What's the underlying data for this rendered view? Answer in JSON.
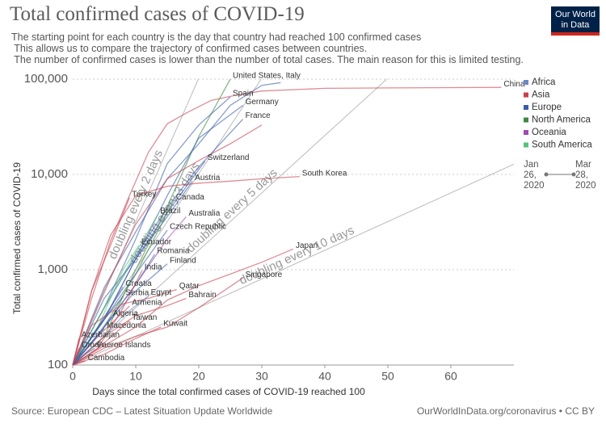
{
  "chart_data": {
    "type": "line",
    "log_y": true,
    "grid": true,
    "title": "Total confirmed cases of COVID-19",
    "subtitle": [
      "The starting point for each country is the day that country had reached 100 confirmed cases",
      " This allows us to compare the trajectory of confirmed cases between countries.",
      " The number of confirmed cases is lower than the number of total cases. The main reason for this is limited testing."
    ],
    "logo": "Our World in Data",
    "x_label": "Days since the total confirmed cases of COVID-19 reached 100",
    "y_label": "Total confirmed cases of COVID-19",
    "xlim": [
      0,
      70
    ],
    "xticks": [
      0,
      10,
      20,
      30,
      40,
      50,
      60
    ],
    "ylim": [
      100,
      100000
    ],
    "yticks": [
      100,
      {
        "value": 1000,
        "label": "1,000"
      },
      {
        "value": 10000,
        "label": "10,000"
      },
      {
        "value": 100000,
        "label": "100,000"
      }
    ],
    "legend": [
      {
        "name": "Africa",
        "color": "#6d88c4"
      },
      {
        "name": "Asia",
        "color": "#c6414f"
      },
      {
        "name": "Europe",
        "color": "#3b5da8"
      },
      {
        "name": "North America",
        "color": "#3a8a3a"
      },
      {
        "name": "Oceania",
        "color": "#a04bb0"
      },
      {
        "name": "South America",
        "color": "#56c27a"
      }
    ],
    "timeline": {
      "start": "Jan 26, 2020",
      "end": "Mar 28, 2020"
    },
    "doubling_lines": [
      {
        "label": "doubling every 2 days",
        "days": 2
      },
      {
        "label": "doubling every 3 days",
        "days": 3
      },
      {
        "label": "doubling every 5 days",
        "days": 5
      },
      {
        "label": "doubling every 10 days",
        "days": 10
      }
    ],
    "series": [
      {
        "name": "China",
        "color": "#c6414f",
        "x": [
          0,
          3,
          6,
          9,
          12,
          15,
          18,
          22,
          26,
          30,
          40,
          50,
          60,
          68
        ],
        "values": [
          100,
          500,
          2000,
          6000,
          17000,
          34000,
          44000,
          60000,
          68000,
          75000,
          80000,
          80800,
          81500,
          82000
        ]
      },
      {
        "name": "United States, Italy",
        "color": "#3a8a3a",
        "x": [
          0,
          5,
          10,
          15,
          20,
          25
        ],
        "values": [
          100,
          200,
          1000,
          4600,
          25000,
          100000
        ]
      },
      {
        "color": "#3b5da8",
        "x": [
          0,
          5,
          10,
          15,
          20,
          25,
          30,
          33
        ],
        "values": [
          100,
          650,
          2500,
          9000,
          21000,
          53000,
          86000,
          92000
        ]
      },
      {
        "name": "Spain",
        "color": "#3b5da8",
        "x": [
          0,
          5,
          10,
          15,
          20,
          25
        ],
        "values": [
          100,
          400,
          2100,
          13000,
          33000,
          65000
        ]
      },
      {
        "name": "Germany",
        "color": "#3b5da8",
        "x": [
          0,
          5,
          10,
          15,
          20,
          27
        ],
        "values": [
          100,
          500,
          1300,
          6000,
          24000,
          53000
        ]
      },
      {
        "color": "#c6414f",
        "x": [
          0,
          5,
          10,
          15,
          20,
          25,
          30
        ],
        "values": [
          100,
          600,
          3000,
          9000,
          14000,
          21000,
          33000
        ]
      },
      {
        "name": "France",
        "color": "#3b5da8",
        "x": [
          0,
          5,
          10,
          15,
          20,
          27
        ],
        "values": [
          100,
          400,
          1400,
          4500,
          12000,
          38000
        ]
      },
      {
        "name": "Switzerland",
        "color": "#3b5da8",
        "x": [
          0,
          5,
          10,
          15,
          21
        ],
        "values": [
          100,
          300,
          1300,
          4000,
          13800
        ]
      },
      {
        "name": "South Korea",
        "color": "#c6414f",
        "x": [
          0,
          3,
          6,
          10,
          15,
          20,
          25,
          30,
          36
        ],
        "values": [
          100,
          600,
          2300,
          6000,
          7500,
          8100,
          8500,
          9000,
          9500
        ]
      },
      {
        "name": "Austria",
        "color": "#3b5da8",
        "x": [
          0,
          5,
          10,
          15,
          19
        ],
        "values": [
          100,
          300,
          1300,
          3600,
          8500
        ]
      },
      {
        "name": "Turkey",
        "color": "#c6414f",
        "x": [
          0,
          3,
          6,
          9
        ],
        "values": [
          100,
          600,
          1800,
          5700
        ]
      },
      {
        "name": "Canada",
        "color": "#3a8a3a",
        "x": [
          0,
          5,
          10,
          16
        ],
        "values": [
          100,
          250,
          900,
          5300
        ]
      },
      {
        "name": "Brazil",
        "color": "#56c27a",
        "x": [
          0,
          5,
          10,
          13.5
        ],
        "values": [
          100,
          400,
          1500,
          3800
        ]
      },
      {
        "name": "Australia",
        "color": "#a04bb0",
        "x": [
          0,
          5,
          10,
          15,
          18
        ],
        "values": [
          100,
          250,
          700,
          2100,
          3600
        ]
      },
      {
        "name": "Czech Republic",
        "color": "#3b5da8",
        "x": [
          0,
          5,
          10,
          15
        ],
        "values": [
          100,
          300,
          900,
          2600
        ]
      },
      {
        "name": "Ecuador",
        "color": "#56c27a",
        "x": [
          0,
          4,
          8,
          10.5
        ],
        "values": [
          100,
          250,
          1000,
          1800
        ]
      },
      {
        "name": "Romania",
        "color": "#3b5da8",
        "x": [
          0,
          5,
          10,
          13
        ],
        "values": [
          100,
          250,
          700,
          1450
        ]
      },
      {
        "name": "Finland",
        "color": "#3b5da8",
        "x": [
          0,
          5,
          10,
          15
        ],
        "values": [
          100,
          250,
          600,
          1150
        ]
      },
      {
        "name": "India",
        "color": "#c6414f",
        "x": [
          0,
          4,
          8,
          11
        ],
        "values": [
          100,
          150,
          400,
          980
        ]
      },
      {
        "name": "Japan",
        "color": "#c6414f",
        "x": [
          0,
          5,
          10,
          15,
          20,
          25,
          30,
          35
        ],
        "values": [
          100,
          160,
          250,
          480,
          680,
          900,
          1200,
          1650
        ]
      },
      {
        "name": "Singapore",
        "color": "#c6414f",
        "x": [
          0,
          5,
          10,
          15,
          20,
          27
        ],
        "values": [
          100,
          150,
          200,
          250,
          400,
          820
        ]
      },
      {
        "name": "Croatia",
        "color": "#3b5da8",
        "x": [
          0,
          4,
          8
        ],
        "values": [
          100,
          250,
          660
        ]
      },
      {
        "name": "Qatar",
        "color": "#c6414f",
        "x": [
          0,
          3,
          8,
          12,
          16.5
        ],
        "values": [
          100,
          260,
          440,
          500,
          620
        ]
      },
      {
        "name": "Serbia",
        "color": "#3b5da8",
        "x": [
          0,
          4,
          8
        ],
        "values": [
          100,
          250,
          525
        ]
      },
      {
        "name": "Egypt",
        "color": "#6d88c4",
        "x": [
          0,
          4,
          8,
          12
        ],
        "values": [
          100,
          170,
          330,
          530
        ]
      },
      {
        "name": "Bahrain",
        "color": "#c6414f",
        "x": [
          0,
          5,
          10,
          15,
          18
        ],
        "values": [
          100,
          200,
          330,
          420,
          500
        ]
      },
      {
        "name": "Armenia",
        "color": "#c6414f",
        "x": [
          0,
          4,
          9
        ],
        "values": [
          100,
          200,
          415
        ]
      },
      {
        "name": "Algeria",
        "color": "#6d88c4",
        "x": [
          0,
          3,
          6
        ],
        "values": [
          100,
          170,
          320
        ]
      },
      {
        "name": "Taiwan",
        "color": "#c6414f",
        "x": [
          0,
          4,
          9
        ],
        "values": [
          100,
          150,
          290
        ]
      },
      {
        "name": "Macedonia",
        "color": "#3b5da8",
        "x": [
          0,
          3,
          5
        ],
        "values": [
          100,
          170,
          240
        ]
      },
      {
        "name": "Kuwait",
        "color": "#c6414f",
        "x": [
          0,
          5,
          10,
          14
        ],
        "values": [
          100,
          130,
          190,
          250
        ]
      },
      {
        "name": "Azerbaijan",
        "color": "#c6414f",
        "x": [
          0,
          1
        ],
        "values": [
          100,
          190
        ]
      },
      {
        "name": "Faeroe Islands",
        "color": "#3b5da8",
        "x": [
          0,
          2,
          3.5
        ],
        "values": [
          100,
          130,
          150
        ]
      },
      {
        "name": "Oman",
        "color": "#c6414f",
        "x": [
          0,
          1
        ],
        "values": [
          100,
          150
        ]
      },
      {
        "name": "Cambodia",
        "color": "#c6414f",
        "x": [
          0,
          2
        ],
        "values": [
          100,
          110
        ]
      }
    ],
    "source": "Source: European CDC – Latest Situation Update Worldwide",
    "url": "OurWorldInData.org/coronavirus • CC BY"
  }
}
